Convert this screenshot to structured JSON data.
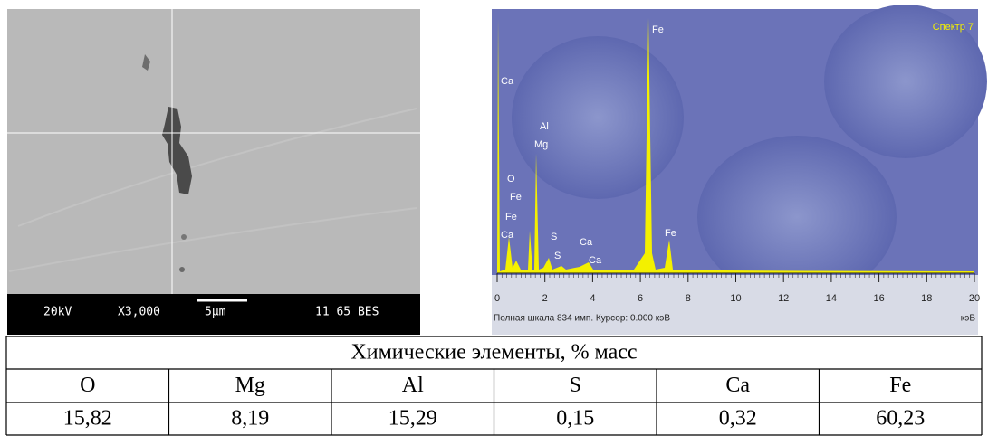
{
  "sem_image": {
    "info_bar": [
      "20kV",
      "X3,000",
      "5µm",
      "11 65 BES"
    ]
  },
  "spectrum": {
    "title": "Спектр 7",
    "peak_labels": [
      "Fe",
      "Ca",
      "Al",
      "Mg",
      "O",
      "Fe",
      "Fe",
      "Ca",
      "S",
      "S",
      "Ca",
      "Ca",
      "Fe"
    ],
    "xlim": [
      0,
      20
    ],
    "xticks": [
      0,
      2,
      4,
      6,
      8,
      10,
      12,
      14,
      16,
      18,
      20
    ],
    "status": "Полная шкала 834 имп. Курсор: 0.000 кэВ",
    "x_unit": "кэВ"
  },
  "table": {
    "title": "Химические элементы, % масс",
    "header": [
      "O",
      "Mg",
      "Al",
      "S",
      "Ca",
      "Fe"
    ],
    "rows": [
      [
        "15,82",
        "8,19",
        "15,29",
        "0,15",
        "0,32",
        "60,23"
      ]
    ]
  }
}
